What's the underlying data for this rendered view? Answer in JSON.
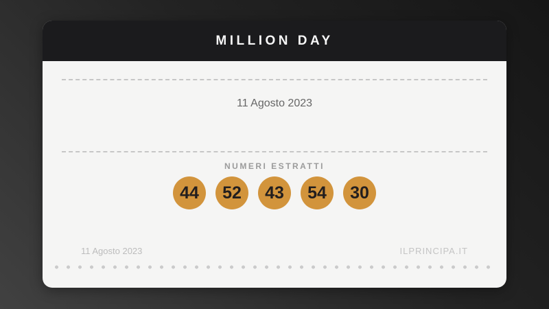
{
  "card": {
    "title": "MILLION DAY",
    "draw_date": "11 Agosto 2023",
    "numbers_label": "NUMERI ESTRATTI",
    "numbers": [
      "44",
      "52",
      "43",
      "54",
      "30"
    ],
    "footer": {
      "date": "11 Agosto 2023",
      "source": "ILPRINCIPA.IT"
    },
    "colors": {
      "ball": "#d2943c",
      "header_bg": "#1b1b1d",
      "body_bg": "#f5f5f4"
    }
  }
}
